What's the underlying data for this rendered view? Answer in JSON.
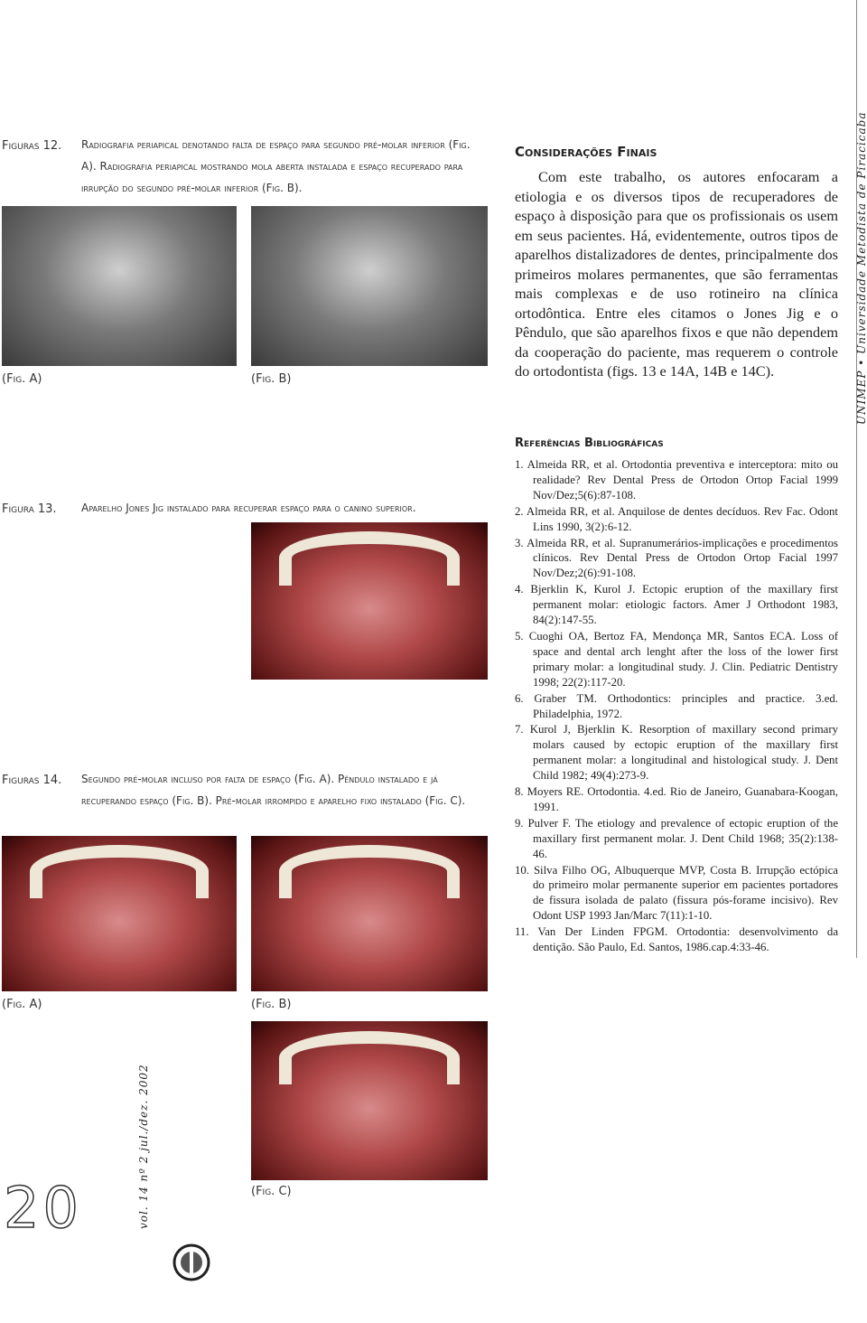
{
  "figure_12": {
    "label": "Figuras 12.",
    "caption": "Radiografia periapical denotando falta de espaço para segundo pré-molar inferior (Fig. A). Radiografia periapical mostrando mola aberta instalada e espaço recuperado para irrupção do segundo pré-molar inferior (Fig. B).",
    "panels": [
      "(Fig. A)",
      "(Fig. B)"
    ]
  },
  "figure_13": {
    "label": "Figura 13.",
    "caption": "Aparelho Jones Jig instalado para recuperar espaço para o canino superior."
  },
  "figure_14": {
    "label": "Figuras 14.",
    "caption": "Segundo pré-molar incluso por falta de espaço (Fig. A). Pêndulo instalado e já recuperando espaço (Fig. B). Pré-molar irrompido e aparelho fixo instalado (Fig. C).",
    "panels": [
      "(Fig. A)",
      "(Fig. B)",
      "(Fig. C)"
    ]
  },
  "conclusions": {
    "heading": "Considerações Finais",
    "text": "Com este trabalho, os autores enfocaram a etiologia e os diversos tipos de recuperadores de espaço à disposição para que os profissionais os usem em seus pacientes. Há, evidentemente, outros tipos de aparelhos distalizadores de dentes, principalmente dos primeiros molares permanentes, que são ferramentas mais complexas e de uso rotineiro na clínica ortodôntica. Entre eles citamos o Jones Jig e o Pêndulo, que são aparelhos fixos e que não dependem da cooperação do paciente, mas requerem o controle do ortodontista (figs. 13 e 14A, 14B e 14C)."
  },
  "references": {
    "heading": "Referências Bibliográficas",
    "items": [
      "1. Almeida RR, et al. Ortodontia preventiva e interceptora: mito ou realidade? Rev Dental Press de Ortodon Ortop Facial 1999 Nov/Dez;5(6):87-108.",
      "2. Almeida RR, et al. Anquilose de dentes decíduos. Rev Fac. Odont Lins 1990, 3(2):6-12.",
      "3. Almeida RR, et al. Supranumerários-implicações e procedimentos clínicos. Rev Dental Press de Ortodon Ortop Facial 1997 Nov/Dez;2(6):91-108.",
      "4. Bjerklin K, Kurol J. Ectopic eruption of the maxillary first permanent molar: etiologic factors. Amer J Orthodont 1983, 84(2):147-55.",
      "5. Cuoghi OA, Bertoz FA, Mendonça MR, Santos ECA. Loss of space and dental arch lenght after the loss of the lower first primary molar: a longitudinal study. J. Clin. Pediatric Dentistry 1998; 22(2):117-20.",
      "6. Graber TM. Orthodontics: principles and practice. 3.ed. Philadelphia, 1972.",
      "7. Kurol J, Bjerklin K. Resorption of maxillary second primary molars caused by ectopic eruption of the maxillary first permanent molar: a longitudinal and histological study. J. Dent Child 1982; 49(4):273-9.",
      "8. Moyers RE. Ortodontia. 4.ed. Rio de Janeiro, Guanabara-Koogan, 1991.",
      "9. Pulver F. The etiology and prevalence of ectopic eruption of the maxillary first permanent molar. J. Dent Child 1968; 35(2):138-46.",
      "10. Silva Filho OG, Albuquerque MVP, Costa B. Irrupção ectópica do primeiro molar permanente superior em pacientes portadores de fissura isolada de palato (fissura pós-forame incisivo). Rev Odont USP 1993 Jan/Marc 7(11):1-10.",
      "11. Van Der Linden FPGM. Ortodontia: desenvolvimento da dentição. São Paulo, Ed. Santos, 1986.cap.4:33-46."
    ]
  },
  "sidebar": "UNIMEP • Universidade Metodista de Piracicaba",
  "footer": {
    "page_number": "20",
    "issue": "vol. 14 nº 2 jul./dez. 2002"
  }
}
